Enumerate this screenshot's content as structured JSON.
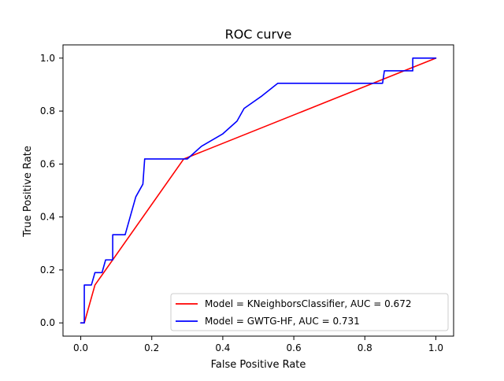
{
  "chart_data": {
    "type": "line",
    "title": "ROC curve",
    "xlabel": "False Positive Rate",
    "ylabel": "True Positive Rate",
    "xlim": [
      -0.05,
      1.05
    ],
    "ylim": [
      -0.05,
      1.05
    ],
    "xticks": [
      0.0,
      0.2,
      0.4,
      0.6,
      0.8,
      1.0
    ],
    "yticks": [
      0.0,
      0.2,
      0.4,
      0.6,
      0.8,
      1.0
    ],
    "xtick_labels": [
      "0.0",
      "0.2",
      "0.4",
      "0.6",
      "0.8",
      "1.0"
    ],
    "ytick_labels": [
      "0.0",
      "0.2",
      "0.4",
      "0.6",
      "0.8",
      "1.0"
    ],
    "grid": false,
    "legend_position": "lower-right",
    "series": [
      {
        "name": "Model = KNeighborsClassifier, AUC = 0.672",
        "color": "#ff0000",
        "x": [
          0.0,
          0.01,
          0.04,
          0.29,
          1.0
        ],
        "y": [
          0.0,
          0.0,
          0.143,
          0.619,
          1.0
        ]
      },
      {
        "name": "Model = GWTG-HF, AUC = 0.731",
        "color": "#0000ff",
        "x": [
          0.0,
          0.01,
          0.01,
          0.03,
          0.04,
          0.06,
          0.07,
          0.09,
          0.09,
          0.125,
          0.155,
          0.175,
          0.18,
          0.21,
          0.28,
          0.3,
          0.34,
          0.4,
          0.44,
          0.46,
          0.51,
          0.555,
          0.6,
          0.65,
          0.7,
          0.75,
          0.8,
          0.85,
          0.855,
          0.935,
          0.935,
          1.0
        ],
        "y": [
          0.0,
          0.0,
          0.143,
          0.143,
          0.19,
          0.19,
          0.238,
          0.238,
          0.333,
          0.333,
          0.476,
          0.524,
          0.619,
          0.619,
          0.619,
          0.619,
          0.667,
          0.714,
          0.762,
          0.81,
          0.857,
          0.905,
          0.905,
          0.905,
          0.905,
          0.905,
          0.905,
          0.905,
          0.952,
          0.952,
          1.0,
          1.0
        ]
      }
    ]
  }
}
